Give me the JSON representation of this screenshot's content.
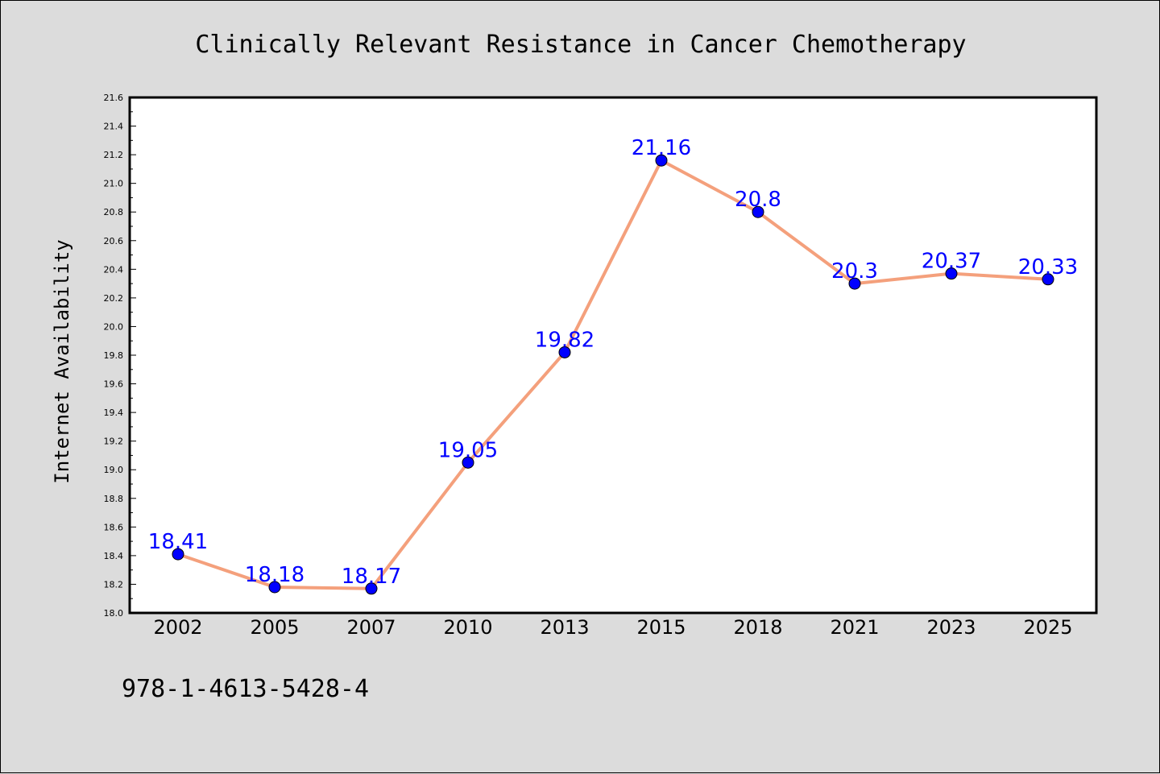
{
  "footnote": "978-1-4613-5428-4",
  "chart_data": {
    "type": "line",
    "title": "Clinically Relevant Resistance in Cancer Chemotherapy",
    "xlabel": "",
    "ylabel": "Internet Availability",
    "categories": [
      "2002",
      "2005",
      "2007",
      "2010",
      "2013",
      "2015",
      "2018",
      "2021",
      "2023",
      "2025"
    ],
    "series": [
      {
        "values": [
          18.41,
          18.18,
          18.17,
          19.05,
          19.82,
          21.16,
          20.8,
          20.3,
          20.37,
          20.33
        ],
        "labels": [
          "18.41",
          "18.18",
          "18.17",
          "19.05",
          "19.82",
          "21.16",
          "20.8",
          "20.3",
          "20.37",
          "20.33"
        ],
        "line_color": "#f4a07c",
        "marker_color": "#0000ff"
      }
    ],
    "ylim": [
      18.0,
      21.6
    ],
    "yticks": [
      "18.0",
      "18.2",
      "18.4",
      "18.6",
      "18.8",
      "19.0",
      "19.2",
      "19.4",
      "19.6",
      "19.8",
      "20.0",
      "20.2",
      "20.4",
      "20.6",
      "20.8",
      "21.0",
      "21.2",
      "21.4",
      "21.6"
    ],
    "grid": false,
    "legend": "none",
    "background": "#dcdcdc",
    "plot_background": "#ffffff"
  }
}
